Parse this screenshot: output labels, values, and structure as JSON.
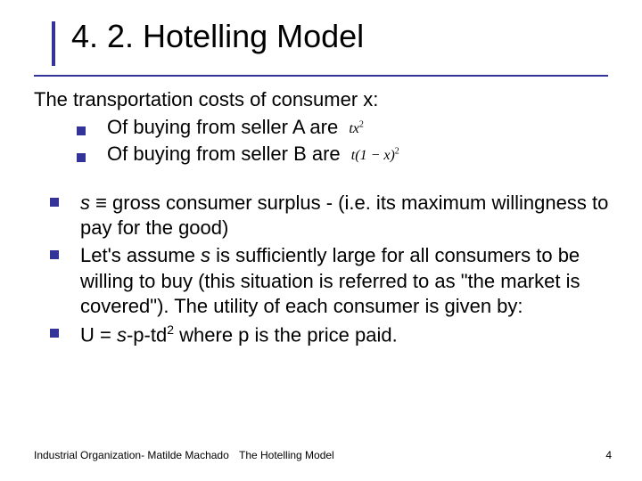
{
  "title": "4. 2. Hotelling Model",
  "intro": "The transportation costs of consumer x:",
  "bullets_top": [
    {
      "text": "Of buying from seller A are",
      "formula_html": "tx<span class='sup'>2</span>"
    },
    {
      "text": "Of buying from seller B are",
      "formula_html": "t(1 − x)<span class='sup'>2</span>"
    }
  ],
  "bullets_bottom": [
    "<span class='ital'>s</span> ≡  gross consumer surplus - (i.e. its maximum willingness to pay for the good)",
    "Let's assume <span class='ital'>s</span> is sufficiently large for all consumers to be willing to buy (this situation is referred to as \"the market is covered\"). The utility of each consumer is given by:",
    "U = <span class='ital'>s</span>-p-td<span class='supn'>2</span> where p is the price paid."
  ],
  "footer": {
    "left": "Industrial Organization- Matilde Machado",
    "mid": "The Hotelling Model",
    "page": "4"
  },
  "colors": {
    "accent": "#333399",
    "text": "#000000",
    "bg": "#ffffff"
  }
}
